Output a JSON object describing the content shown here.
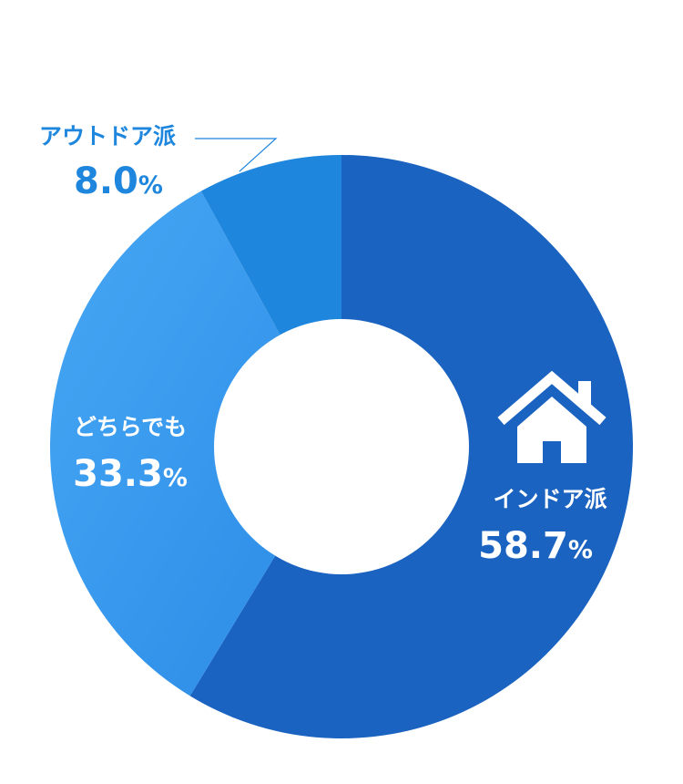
{
  "chart_data": {
    "type": "pie",
    "title": "",
    "slices": [
      {
        "label": "インドア派",
        "value": 58.7,
        "display": "58.7",
        "unit": "%",
        "color": "#1B63C1",
        "label_color": "#FFFFFF"
      },
      {
        "label": "どちらでも",
        "value": 33.3,
        "display": "33.3",
        "unit": "%",
        "color": "#3F9BEE",
        "label_color": "#FFFFFF"
      },
      {
        "label": "アウトドア派",
        "value": 8.0,
        "display": "8.0",
        "unit": "%",
        "color": "#1F86DD",
        "label_color": "#1F86DD"
      }
    ],
    "donut": true,
    "start_angle_deg": 0,
    "direction": "clockwise",
    "legend": "none"
  },
  "icons": {
    "indoor": "house-icon"
  },
  "colors": {
    "background": "#FFFFFF",
    "leader_line": "#1F86DD"
  }
}
